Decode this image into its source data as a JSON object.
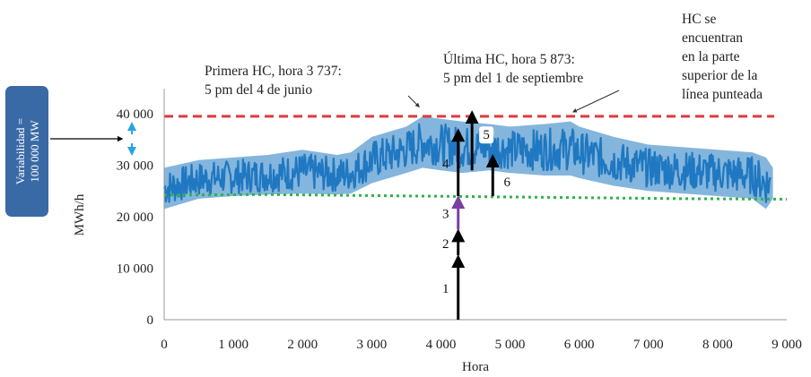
{
  "chart_data": {
    "type": "line",
    "title": "",
    "xlabel": "Hora",
    "ylabel": "MWh/h",
    "xlim": [
      0,
      9000
    ],
    "ylim": [
      0,
      42000
    ],
    "x_ticks": [
      "0",
      "1 000",
      "2 000",
      "3 000",
      "4 000",
      "5 000",
      "6 000",
      "7 000",
      "8 000",
      "9 000"
    ],
    "y_ticks": [
      "0",
      "10 000",
      "20 000",
      "30 000",
      "40 000"
    ],
    "series": [
      {
        "type": "band",
        "color": "#1f78c1",
        "x": [
          0,
          500,
          1000,
          1500,
          2000,
          2500,
          2700,
          3000,
          3500,
          3737,
          4000,
          4300,
          4700,
          5000,
          5500,
          5873,
          6000,
          6500,
          7000,
          7500,
          8000,
          8500,
          8700,
          8800
        ],
        "low": [
          20000,
          22000,
          22500,
          22800,
          23000,
          22800,
          23000,
          25000,
          27000,
          28000,
          27500,
          27000,
          27500,
          27000,
          26500,
          26500,
          26000,
          24500,
          23500,
          23000,
          22500,
          22000,
          20000,
          22000
        ],
        "high": [
          31000,
          32500,
          33000,
          33500,
          34500,
          33500,
          34000,
          37000,
          39000,
          41000,
          40500,
          40000,
          39500,
          39000,
          39500,
          40000,
          39000,
          37000,
          35500,
          35000,
          34500,
          34000,
          33000,
          31000
        ]
      },
      {
        "type": "reference-line",
        "style": "dashed",
        "color": "#e03a3a",
        "x": [
          0,
          9000
        ],
        "y": [
          39500,
          39500
        ]
      },
      {
        "type": "reference-line",
        "style": "dotted",
        "color": "#2db34a",
        "x": [
          0,
          1500,
          3000,
          4500,
          6000,
          7500,
          9000
        ],
        "y": [
          24200,
          24300,
          24100,
          23900,
          23700,
          23500,
          23400
        ]
      }
    ],
    "stacked_arrow": {
      "x": 4250,
      "segments": [
        {
          "label": "1",
          "from": 0,
          "to": 12500,
          "color": "#000000"
        },
        {
          "label": "2",
          "from": 12500,
          "to": 17500,
          "color": "#000000"
        },
        {
          "label": "3",
          "from": 17500,
          "to": 24000,
          "color": "#7b3fa0"
        },
        {
          "label": "4",
          "from": 24000,
          "to": 37000,
          "color": "#000000"
        }
      ]
    },
    "arrows": [
      {
        "label": "5",
        "x": 4450,
        "from": 29000,
        "to": 40500,
        "color": "#000000"
      },
      {
        "label": "6",
        "x": 4750,
        "from": 24000,
        "to": 32000,
        "color": "#000000"
      }
    ],
    "annotations": [
      {
        "id": "first",
        "lines": [
          "Primera HC, hora 3 737:",
          "5 pm del 4 de junio"
        ],
        "points_to": {
          "x": 3737,
          "y": 41000
        }
      },
      {
        "id": "last",
        "lines": [
          "Última HC, hora 5 873:",
          "5 pm del 1 de septiembre"
        ],
        "points_to": {
          "x": 5873,
          "y": 40000
        }
      },
      {
        "id": "above",
        "lines": [
          "HC se",
          "encuentran",
          "en la parte",
          "superior de la",
          "línea punteada"
        ]
      }
    ],
    "variability": {
      "lines": [
        "Variabilidad =",
        "100 000 MW"
      ],
      "badge_color": "#3a6aa6",
      "marker_color": "#29a3e0"
    },
    "grid": false,
    "legend": "none"
  }
}
